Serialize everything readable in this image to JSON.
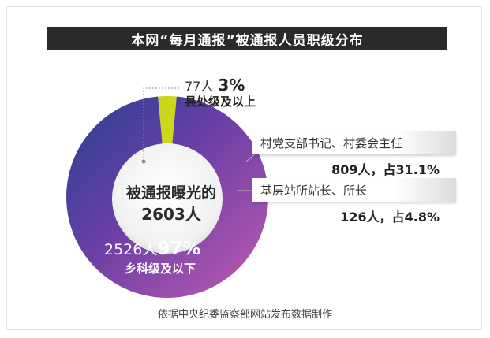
{
  "chart_data": {
    "type": "pie",
    "style": "donut",
    "title": "本网“每月通报”被通报人员职级分布",
    "center_label": "被通报曝光的",
    "center_value": "2603人",
    "total": 2603,
    "slices": [
      {
        "label": "县处级及以上",
        "count": 77,
        "count_label": "77人",
        "percent": 3,
        "percent_label": "3%",
        "color": "#c9d81a"
      },
      {
        "label": "乡科级及以下",
        "count": 2526,
        "count_label": "2526人",
        "percent": 97,
        "percent_label": "97%",
        "color": "#7a3fa3"
      }
    ],
    "breakdown": [
      {
        "label": "村党支部书记、村委会主任",
        "value": "809人，占31.1%"
      },
      {
        "label": "基层站所站长、所长",
        "value": "126人，占4.8%"
      }
    ],
    "source": "依据中央纪委监察部网站发布数据制作"
  }
}
